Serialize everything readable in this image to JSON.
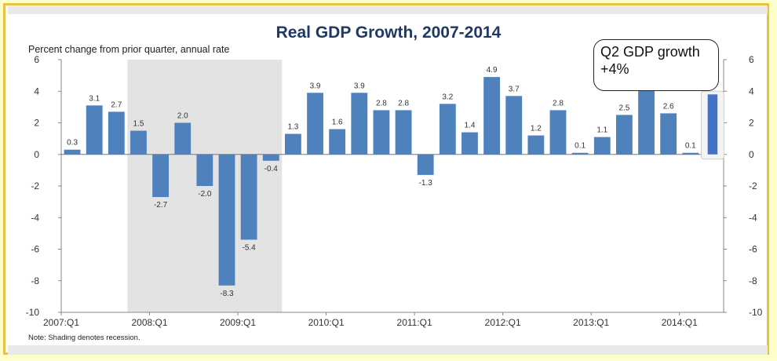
{
  "chart_data": {
    "type": "bar",
    "title": "Real GDP Growth, 2007-2014",
    "subtitle": "Percent change from prior quarter, annual rate",
    "note": "Note: Shading denotes recession.",
    "ylim": [
      -10,
      6
    ],
    "yticks": [
      6,
      4,
      2,
      0,
      -2,
      -4,
      -6,
      -8,
      -10
    ],
    "categories": [
      "2007:Q1",
      "2007:Q2",
      "2007:Q3",
      "2007:Q4",
      "2008:Q1",
      "2008:Q2",
      "2008:Q3",
      "2008:Q4",
      "2009:Q1",
      "2009:Q2",
      "2009:Q3",
      "2009:Q4",
      "2010:Q1",
      "2010:Q2",
      "2010:Q3",
      "2010:Q4",
      "2011:Q1",
      "2011:Q2",
      "2011:Q3",
      "2011:Q4",
      "2012:Q1",
      "2012:Q2",
      "2012:Q3",
      "2012:Q4",
      "2013:Q1",
      "2013:Q2",
      "2013:Q3",
      "2013:Q4",
      "2014:Q1",
      "2014:Q2"
    ],
    "values": [
      0.3,
      3.1,
      2.7,
      1.5,
      -2.7,
      2.0,
      -2.0,
      -8.3,
      -5.4,
      -0.4,
      1.3,
      3.9,
      1.6,
      3.9,
      2.8,
      2.8,
      -1.3,
      3.2,
      1.4,
      4.9,
      3.7,
      1.2,
      2.8,
      0.1,
      1.1,
      2.5,
      4.1,
      2.6,
      0.1,
      3.8
    ],
    "data_labels": [
      "0.3",
      "3.1",
      "2.7",
      "1.5",
      "-2.7",
      "2.0",
      "-2.0",
      "-8.3",
      "-5.4",
      "-0.4",
      "1.3",
      "3.9",
      "1.6",
      "3.9",
      "2.8",
      "2.8",
      "-1.3",
      "3.2",
      "1.4",
      "4.9",
      "3.7",
      "1.2",
      "2.8",
      "0.1",
      "1.1",
      "2.5",
      "4.1",
      "2.6",
      "0.1",
      ""
    ],
    "xtick_labels": [
      {
        "label": "2007:Q1",
        "category": "2007:Q1"
      },
      {
        "label": "2008:Q1",
        "category": "2008:Q1"
      },
      {
        "label": "2009:Q1",
        "category": "2009:Q1"
      },
      {
        "label": "2010:Q1",
        "category": "2010:Q1"
      },
      {
        "label": "2011:Q1",
        "category": "2011:Q1"
      },
      {
        "label": "2012:Q1",
        "category": "2012:Q1"
      },
      {
        "label": "2013:Q1",
        "category": "2013:Q1"
      },
      {
        "label": "2014:Q1",
        "category": "2014:Q1"
      }
    ],
    "recession": {
      "from": "2007:Q4",
      "to": "2009:Q2"
    },
    "highlighted_category": "2014:Q2",
    "colors": {
      "bar": "#4f81bd",
      "highlight_bar": "#4472c4",
      "recession": "#e3e3e3",
      "axis": "#888888",
      "title": "#1f3864",
      "label": "#333333"
    }
  },
  "callout": {
    "text": "Q2 GDP growth +4%"
  }
}
